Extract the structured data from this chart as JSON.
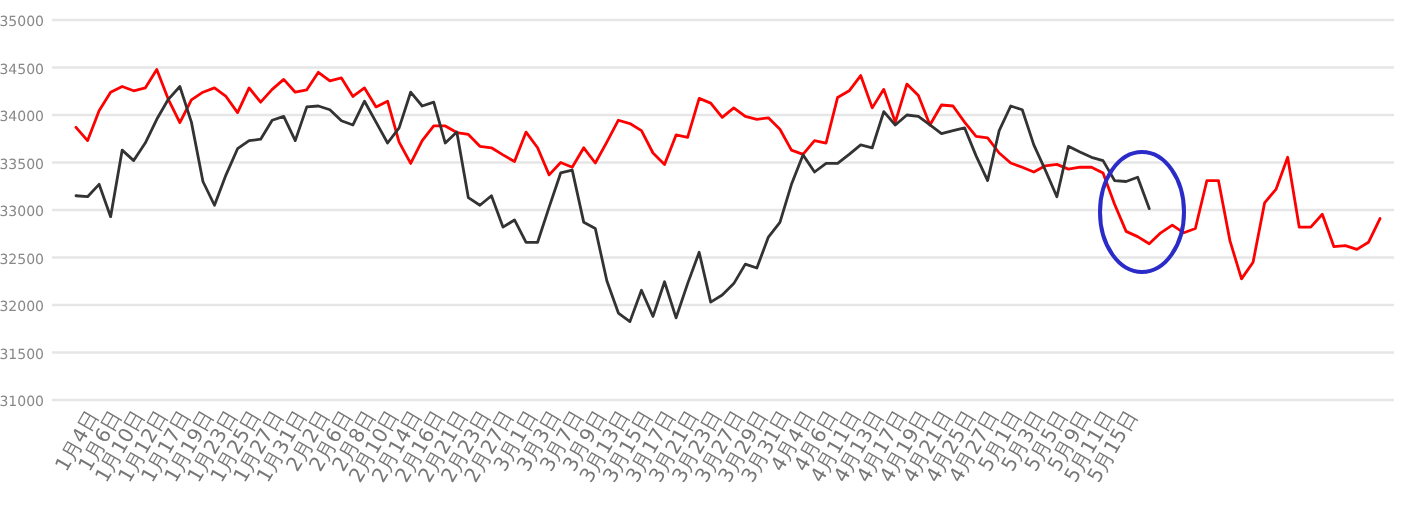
{
  "chart_data": {
    "type": "line",
    "categories": [
      null,
      null,
      "1月4日",
      null,
      "1月6日",
      null,
      "1月10日",
      null,
      "1月12日",
      null,
      "1月17日",
      null,
      "1月19日",
      null,
      "1月23日",
      null,
      "1月25日",
      null,
      "1月27日",
      null,
      "1月31日",
      null,
      "2月2日",
      null,
      "2月6日",
      null,
      "2月8日",
      null,
      "2月10日",
      null,
      "2月14日",
      null,
      "2月16日",
      null,
      "2月21日",
      null,
      "2月23日",
      null,
      "2月27日",
      null,
      "3月1日",
      null,
      "3月3日",
      null,
      "3月7日",
      null,
      "3月9日",
      null,
      "3月13日",
      null,
      "3月15日",
      null,
      "3月17日",
      null,
      "3月21日",
      null,
      "3月23日",
      null,
      "3月27日",
      null,
      "3月29日",
      null,
      "3月31日",
      null,
      "4月4日",
      null,
      "4月6日",
      null,
      "4月11日",
      null,
      "4月13日",
      null,
      "4月17日",
      null,
      "4月19日",
      null,
      "4月21日",
      null,
      "4月25日",
      null,
      "4月27日",
      null,
      "5月1日",
      null,
      "5月3日",
      null,
      "5月5日",
      null,
      "5月9日",
      null,
      "5月11日",
      null,
      "5月15日",
      null,
      null,
      null,
      null,
      null,
      null,
      null,
      null,
      null,
      null,
      null,
      null,
      null,
      null,
      null,
      null,
      null,
      null,
      null,
      null,
      null
    ],
    "series": [
      {
        "color": "#ff0000",
        "values": [
          33870,
          33730,
          34045,
          34240,
          34300,
          34255,
          34285,
          34480,
          34165,
          33920,
          34160,
          34240,
          34285,
          34195,
          34025,
          34285,
          34135,
          34270,
          34375,
          34240,
          34265,
          34450,
          34360,
          34390,
          34195,
          34285,
          34085,
          34145,
          33715,
          33490,
          33730,
          33885,
          33885,
          33815,
          33795,
          33670,
          33655,
          33580,
          33510,
          33820,
          33655,
          33370,
          33500,
          33450,
          33655,
          33495,
          33715,
          33945,
          33910,
          33835,
          33600,
          33480,
          33790,
          33765,
          34175,
          34125,
          33975,
          34075,
          33985,
          33955,
          33970,
          33850,
          33630,
          33585,
          33730,
          33705,
          34185,
          34255,
          34415,
          34075,
          34270,
          33925,
          34325,
          34205,
          33895,
          34105,
          34095,
          33925,
          33775,
          33760,
          33600,
          33495,
          33450,
          33400,
          33465,
          33480,
          33430,
          33450,
          33450,
          33390,
          33060,
          32775,
          32720,
          32645,
          32760,
          32840,
          32760,
          32805,
          33310,
          33310,
          32675,
          32275,
          32450,
          33075,
          33220,
          33555,
          32820,
          32820,
          32955,
          32615,
          32625,
          32585,
          32660,
          32910
        ]
      },
      {
        "color": "#333333",
        "values": [
          33150,
          33140,
          33270,
          32930,
          33630,
          33520,
          33705,
          33955,
          34165,
          34300,
          33925,
          33300,
          33050,
          33370,
          33645,
          33730,
          33745,
          33945,
          33985,
          33730,
          34085,
          34095,
          34055,
          33940,
          33895,
          34145,
          33925,
          33705,
          33865,
          34240,
          34095,
          34135,
          33705,
          33820,
          33130,
          33050,
          33150,
          32820,
          32895,
          32660,
          32660,
          33030,
          33390,
          33420,
          32870,
          32805,
          32255,
          31915,
          31825,
          32155,
          31880,
          32245,
          31865,
          32225,
          32555,
          32030,
          32105,
          32225,
          32430,
          32390,
          32715,
          32870,
          33270,
          33580,
          33400,
          33490,
          33490,
          33585,
          33685,
          33655,
          34035,
          33895,
          34000,
          33985,
          33895,
          33805,
          33835,
          33865,
          33570,
          33310,
          33835,
          34095,
          34055,
          33685,
          33420,
          33140,
          33670,
          33610,
          33555,
          33520,
          33310,
          33300,
          33345,
          33015,
          null,
          null,
          null,
          null,
          null,
          null,
          null,
          null,
          null,
          null,
          null,
          null,
          null,
          null,
          null,
          null,
          null,
          null,
          null,
          null
        ]
      }
    ],
    "ylim": [
      31000,
      35000
    ],
    "yticks": [
      31000,
      31500,
      32000,
      32500,
      33000,
      33500,
      34000,
      34500,
      35000
    ],
    "grid": "y"
  }
}
